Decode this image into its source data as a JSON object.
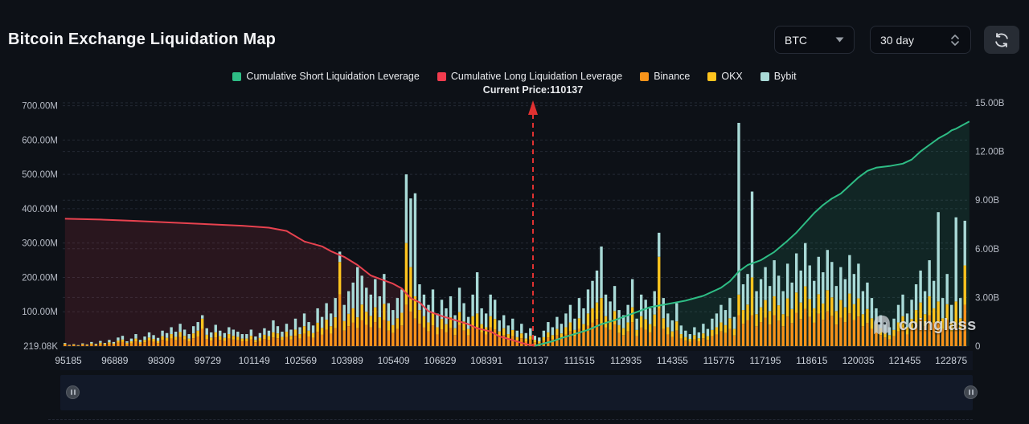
{
  "header": {
    "title": "Bitcoin Exchange Liquidation Map",
    "symbol_select": {
      "value": "BTC"
    },
    "range_select": {
      "value": "30 day"
    }
  },
  "legend": {
    "items": [
      {
        "label": "Cumulative Short Liquidation Leverage",
        "color": "#2ebd85"
      },
      {
        "label": "Cumulative Long Liquidation Leverage",
        "color": "#f23c4e"
      },
      {
        "label": "Binance",
        "color": "#f7931a"
      },
      {
        "label": "OKX",
        "color": "#ffc41e"
      },
      {
        "label": "Bybit",
        "color": "#a9dad7"
      }
    ]
  },
  "annotation": {
    "current_price_label": "Current Price:110137"
  },
  "watermark": {
    "text": "coinglass"
  },
  "chart_data": {
    "type": "bar",
    "subtype": "stacked-bars-with-cumulative-lines",
    "title": "Bitcoin Exchange Liquidation Map",
    "current_price": 110137,
    "current_price_tick_index": 10,
    "grid": "dashed-horizontal",
    "left_axis": {
      "unit": "M (millions USD, per-bar liquidation leverage)",
      "max": 700,
      "ticks": [
        {
          "label": "219.08K",
          "value": 0
        },
        {
          "label": "100.00M",
          "value": 100
        },
        {
          "label": "200.00M",
          "value": 200
        },
        {
          "label": "300.00M",
          "value": 300
        },
        {
          "label": "400.00M",
          "value": 400
        },
        {
          "label": "500.00M",
          "value": 500
        },
        {
          "label": "600.00M",
          "value": 600
        },
        {
          "label": "700.00M",
          "value": 700
        }
      ]
    },
    "right_axis": {
      "unit": "B (billions USD, cumulative leverage)",
      "max": 15,
      "ticks": [
        {
          "label": "0",
          "value": 0
        },
        {
          "label": "3.00B",
          "value": 3
        },
        {
          "label": "6.00B",
          "value": 6
        },
        {
          "label": "9.00B",
          "value": 9
        },
        {
          "label": "12.00B",
          "value": 12
        },
        {
          "label": "15.00B",
          "value": 15
        }
      ]
    },
    "x_ticks": [
      "95185",
      "96889",
      "98309",
      "99729",
      "101149",
      "102569",
      "103989",
      "105409",
      "106829",
      "108391",
      "110137",
      "111515",
      "112935",
      "114355",
      "115775",
      "117195",
      "118615",
      "120035",
      "121455",
      "122875"
    ],
    "bar_series_order": [
      "Binance",
      "OKX",
      "Bybit"
    ],
    "bar_colors": {
      "Binance": "#f7931a",
      "OKX": "#ffc41e",
      "Bybit": "#a9dad7"
    },
    "bars_unit": "millions",
    "bars": [
      [
        5,
        2,
        2
      ],
      [
        2,
        1,
        1
      ],
      [
        3,
        2,
        1
      ],
      [
        1,
        1,
        1
      ],
      [
        4,
        2,
        2
      ],
      [
        2,
        2,
        1
      ],
      [
        5,
        3,
        4
      ],
      [
        3,
        2,
        2
      ],
      [
        6,
        4,
        5
      ],
      [
        4,
        3,
        2
      ],
      [
        7,
        4,
        7
      ],
      [
        5,
        3,
        4
      ],
      [
        10,
        6,
        9
      ],
      [
        12,
        7,
        11
      ],
      [
        6,
        4,
        4
      ],
      [
        8,
        6,
        8
      ],
      [
        14,
        8,
        13
      ],
      [
        7,
        5,
        6
      ],
      [
        11,
        7,
        10
      ],
      [
        16,
        9,
        15
      ],
      [
        13,
        8,
        11
      ],
      [
        9,
        6,
        9
      ],
      [
        18,
        11,
        16
      ],
      [
        15,
        9,
        14
      ],
      [
        22,
        13,
        20
      ],
      [
        17,
        10,
        15
      ],
      [
        26,
        15,
        24
      ],
      [
        19,
        11,
        18
      ],
      [
        14,
        8,
        13
      ],
      [
        23,
        14,
        21
      ],
      [
        28,
        17,
        25
      ],
      [
        50,
        30,
        10
      ],
      [
        21,
        12,
        19
      ],
      [
        16,
        9,
        15
      ],
      [
        25,
        15,
        22
      ],
      [
        18,
        11,
        16
      ],
      [
        15,
        9,
        14
      ],
      [
        22,
        13,
        20
      ],
      [
        19,
        11,
        18
      ],
      [
        17,
        10,
        15
      ],
      [
        14,
        8,
        13
      ],
      [
        14,
        8,
        13
      ],
      [
        19,
        11,
        18
      ],
      [
        11,
        7,
        10
      ],
      [
        15,
        9,
        14
      ],
      [
        21,
        12,
        19
      ],
      [
        18,
        11,
        16
      ],
      [
        25,
        15,
        35
      ],
      [
        23,
        14,
        21
      ],
      [
        17,
        10,
        15
      ],
      [
        26,
        16,
        23
      ],
      [
        19,
        11,
        18
      ],
      [
        30,
        18,
        32
      ],
      [
        22,
        13,
        20
      ],
      [
        36,
        22,
        37
      ],
      [
        28,
        17,
        25
      ],
      [
        24,
        14,
        22
      ],
      [
        42,
        26,
        42
      ],
      [
        33,
        20,
        32
      ],
      [
        48,
        29,
        48
      ],
      [
        36,
        22,
        37
      ],
      [
        52,
        32,
        56
      ],
      [
        150,
        95,
        30
      ],
      [
        45,
        28,
        47
      ],
      [
        58,
        36,
        66
      ],
      [
        68,
        42,
        75
      ],
      [
        52,
        32,
        146
      ],
      [
        75,
        46,
        84
      ],
      [
        62,
        38,
        70
      ],
      [
        55,
        33,
        62
      ],
      [
        70,
        43,
        82
      ],
      [
        52,
        32,
        61
      ],
      [
        76,
        47,
        87
      ],
      [
        45,
        28,
        52
      ],
      [
        38,
        23,
        44
      ],
      [
        50,
        31,
        59
      ],
      [
        60,
        37,
        68
      ],
      [
        120,
        180,
        200
      ],
      [
        100,
        130,
        200
      ],
      [
        80,
        65,
        300
      ],
      [
        65,
        40,
        75
      ],
      [
        54,
        33,
        63
      ],
      [
        43,
        26,
        51
      ],
      [
        60,
        36,
        69
      ],
      [
        34,
        21,
        40
      ],
      [
        49,
        30,
        56
      ],
      [
        40,
        24,
        46
      ],
      [
        52,
        32,
        61
      ],
      [
        32,
        20,
        38
      ],
      [
        61,
        38,
        71
      ],
      [
        45,
        27,
        53
      ],
      [
        31,
        19,
        35
      ],
      [
        54,
        33,
        63
      ],
      [
        55,
        40,
        120
      ],
      [
        40,
        24,
        46
      ],
      [
        34,
        21,
        40
      ],
      [
        54,
        33,
        63
      ],
      [
        49,
        30,
        56
      ],
      [
        27,
        16,
        32
      ],
      [
        32,
        20,
        38
      ],
      [
        22,
        13,
        25
      ],
      [
        29,
        18,
        33
      ],
      [
        16,
        10,
        19
      ],
      [
        23,
        14,
        28
      ],
      [
        14,
        8,
        16
      ],
      [
        19,
        11,
        22
      ],
      [
        11,
        7,
        12
      ],
      [
        9,
        5,
        11
      ],
      [
        16,
        10,
        19
      ],
      [
        25,
        15,
        30
      ],
      [
        20,
        12,
        23
      ],
      [
        31,
        19,
        35
      ],
      [
        23,
        14,
        28
      ],
      [
        34,
        21,
        40
      ],
      [
        43,
        26,
        51
      ],
      [
        29,
        18,
        33
      ],
      [
        50,
        31,
        59
      ],
      [
        40,
        24,
        46
      ],
      [
        59,
        36,
        70
      ],
      [
        68,
        42,
        80
      ],
      [
        79,
        48,
        93
      ],
      [
        60,
        80,
        150
      ],
      [
        54,
        33,
        63
      ],
      [
        47,
        29,
        54
      ],
      [
        63,
        39,
        73
      ],
      [
        38,
        23,
        44
      ],
      [
        32,
        20,
        38
      ],
      [
        43,
        26,
        51
      ],
      [
        70,
        43,
        82
      ],
      [
        29,
        18,
        33
      ],
      [
        54,
        33,
        63
      ],
      [
        48,
        30,
        57
      ],
      [
        40,
        24,
        46
      ],
      [
        57,
        35,
        68
      ],
      [
        110,
        150,
        70
      ],
      [
        50,
        31,
        59
      ],
      [
        34,
        21,
        40
      ],
      [
        27,
        16,
        32
      ],
      [
        45,
        27,
        53
      ],
      [
        22,
        13,
        25
      ],
      [
        16,
        10,
        19
      ],
      [
        13,
        8,
        14
      ],
      [
        20,
        12,
        23
      ],
      [
        14,
        9,
        17
      ],
      [
        23,
        14,
        28
      ],
      [
        18,
        11,
        21
      ],
      [
        29,
        18,
        33
      ],
      [
        34,
        21,
        40
      ],
      [
        43,
        26,
        51
      ],
      [
        38,
        23,
        44
      ],
      [
        50,
        31,
        59
      ],
      [
        31,
        19,
        35
      ],
      [
        90,
        60,
        500
      ],
      [
        65,
        40,
        75
      ],
      [
        75,
        46,
        89
      ],
      [
        90,
        110,
        250
      ],
      [
        58,
        35,
        67
      ],
      [
        70,
        43,
        82
      ],
      [
        83,
        51,
        96
      ],
      [
        63,
        39,
        73
      ],
      [
        90,
        55,
        105
      ],
      [
        74,
        45,
        86
      ],
      [
        58,
        35,
        67
      ],
      [
        86,
        53,
        101
      ],
      [
        67,
        41,
        77
      ],
      [
        97,
        59,
        114
      ],
      [
        79,
        48,
        93
      ],
      [
        108,
        66,
        126
      ],
      [
        85,
        52,
        98
      ],
      [
        68,
        42,
        80
      ],
      [
        94,
        57,
        109
      ],
      [
        77,
        47,
        91
      ],
      [
        101,
        62,
        117
      ],
      [
        88,
        54,
        103
      ],
      [
        63,
        39,
        73
      ],
      [
        83,
        51,
        96
      ],
      [
        70,
        43,
        82
      ],
      [
        95,
        58,
        112
      ],
      [
        76,
        46,
        88
      ],
      [
        86,
        53,
        101
      ],
      [
        58,
        35,
        67
      ],
      [
        67,
        41,
        77
      ],
      [
        50,
        31,
        59
      ],
      [
        40,
        24,
        46
      ],
      [
        32,
        20,
        38
      ],
      [
        25,
        15,
        30
      ],
      [
        20,
        12,
        23
      ],
      [
        29,
        18,
        33
      ],
      [
        43,
        26,
        51
      ],
      [
        54,
        33,
        63
      ],
      [
        34,
        21,
        40
      ],
      [
        49,
        30,
        56
      ],
      [
        65,
        40,
        75
      ],
      [
        79,
        48,
        93
      ],
      [
        58,
        35,
        67
      ],
      [
        90,
        55,
        105
      ],
      [
        68,
        42,
        80
      ],
      [
        70,
        60,
        260
      ],
      [
        50,
        31,
        59
      ],
      [
        76,
        46,
        88
      ],
      [
        43,
        26,
        51
      ],
      [
        60,
        70,
        245
      ],
      [
        50,
        31,
        59
      ],
      [
        120,
        115,
        130
      ]
    ],
    "lines": {
      "long": {
        "name": "Cumulative Long Liquidation Leverage",
        "color": "#e8424f",
        "fill": "rgba(229,62,78,0.13)",
        "unit": "billions",
        "points": [
          [
            0,
            7.85
          ],
          [
            8,
            7.8
          ],
          [
            16,
            7.72
          ],
          [
            24,
            7.62
          ],
          [
            32,
            7.52
          ],
          [
            40,
            7.42
          ],
          [
            46,
            7.3
          ],
          [
            50,
            7.1
          ],
          [
            54,
            6.45
          ],
          [
            58,
            6.15
          ],
          [
            60,
            5.85
          ],
          [
            63,
            5.5
          ],
          [
            66,
            5.0
          ],
          [
            69,
            4.35
          ],
          [
            72,
            4.05
          ],
          [
            74,
            3.85
          ],
          [
            76,
            3.55
          ],
          [
            78,
            2.95
          ],
          [
            80,
            2.7
          ],
          [
            82,
            2.15
          ],
          [
            85,
            1.85
          ],
          [
            88,
            1.6
          ],
          [
            91,
            1.35
          ],
          [
            93,
            1.1
          ],
          [
            96,
            0.9
          ],
          [
            98,
            0.6
          ],
          [
            100,
            0.45
          ],
          [
            102,
            0.28
          ],
          [
            104,
            0.12
          ],
          [
            106,
            0.02
          ]
        ]
      },
      "short": {
        "name": "Cumulative Short Liquidation Leverage",
        "color": "#2ebd85",
        "fill": "rgba(46,189,133,0.13)",
        "unit": "billions",
        "points": [
          [
            106,
            0.02
          ],
          [
            110,
            0.3
          ],
          [
            112,
            0.5
          ],
          [
            115,
            0.75
          ],
          [
            118,
            1.0
          ],
          [
            121,
            1.35
          ],
          [
            124,
            1.6
          ],
          [
            128,
            2.0
          ],
          [
            132,
            2.4
          ],
          [
            136,
            2.6
          ],
          [
            140,
            2.8
          ],
          [
            144,
            3.1
          ],
          [
            148,
            3.6
          ],
          [
            150,
            4.0
          ],
          [
            152,
            4.6
          ],
          [
            154,
            5.0
          ],
          [
            157,
            5.3
          ],
          [
            160,
            5.8
          ],
          [
            163,
            6.5
          ],
          [
            165,
            7.0
          ],
          [
            167,
            7.6
          ],
          [
            169,
            8.2
          ],
          [
            171,
            8.7
          ],
          [
            173,
            9.1
          ],
          [
            175,
            9.4
          ],
          [
            177,
            9.9
          ],
          [
            179,
            10.4
          ],
          [
            181,
            10.8
          ],
          [
            183,
            11.0
          ],
          [
            186,
            11.1
          ],
          [
            189,
            11.25
          ],
          [
            191,
            11.5
          ],
          [
            193,
            12.0
          ],
          [
            195,
            12.4
          ],
          [
            197,
            12.8
          ],
          [
            199,
            13.1
          ],
          [
            200,
            13.3
          ],
          [
            201,
            13.4
          ],
          [
            202,
            13.55
          ],
          [
            204,
            13.85
          ]
        ]
      }
    }
  }
}
